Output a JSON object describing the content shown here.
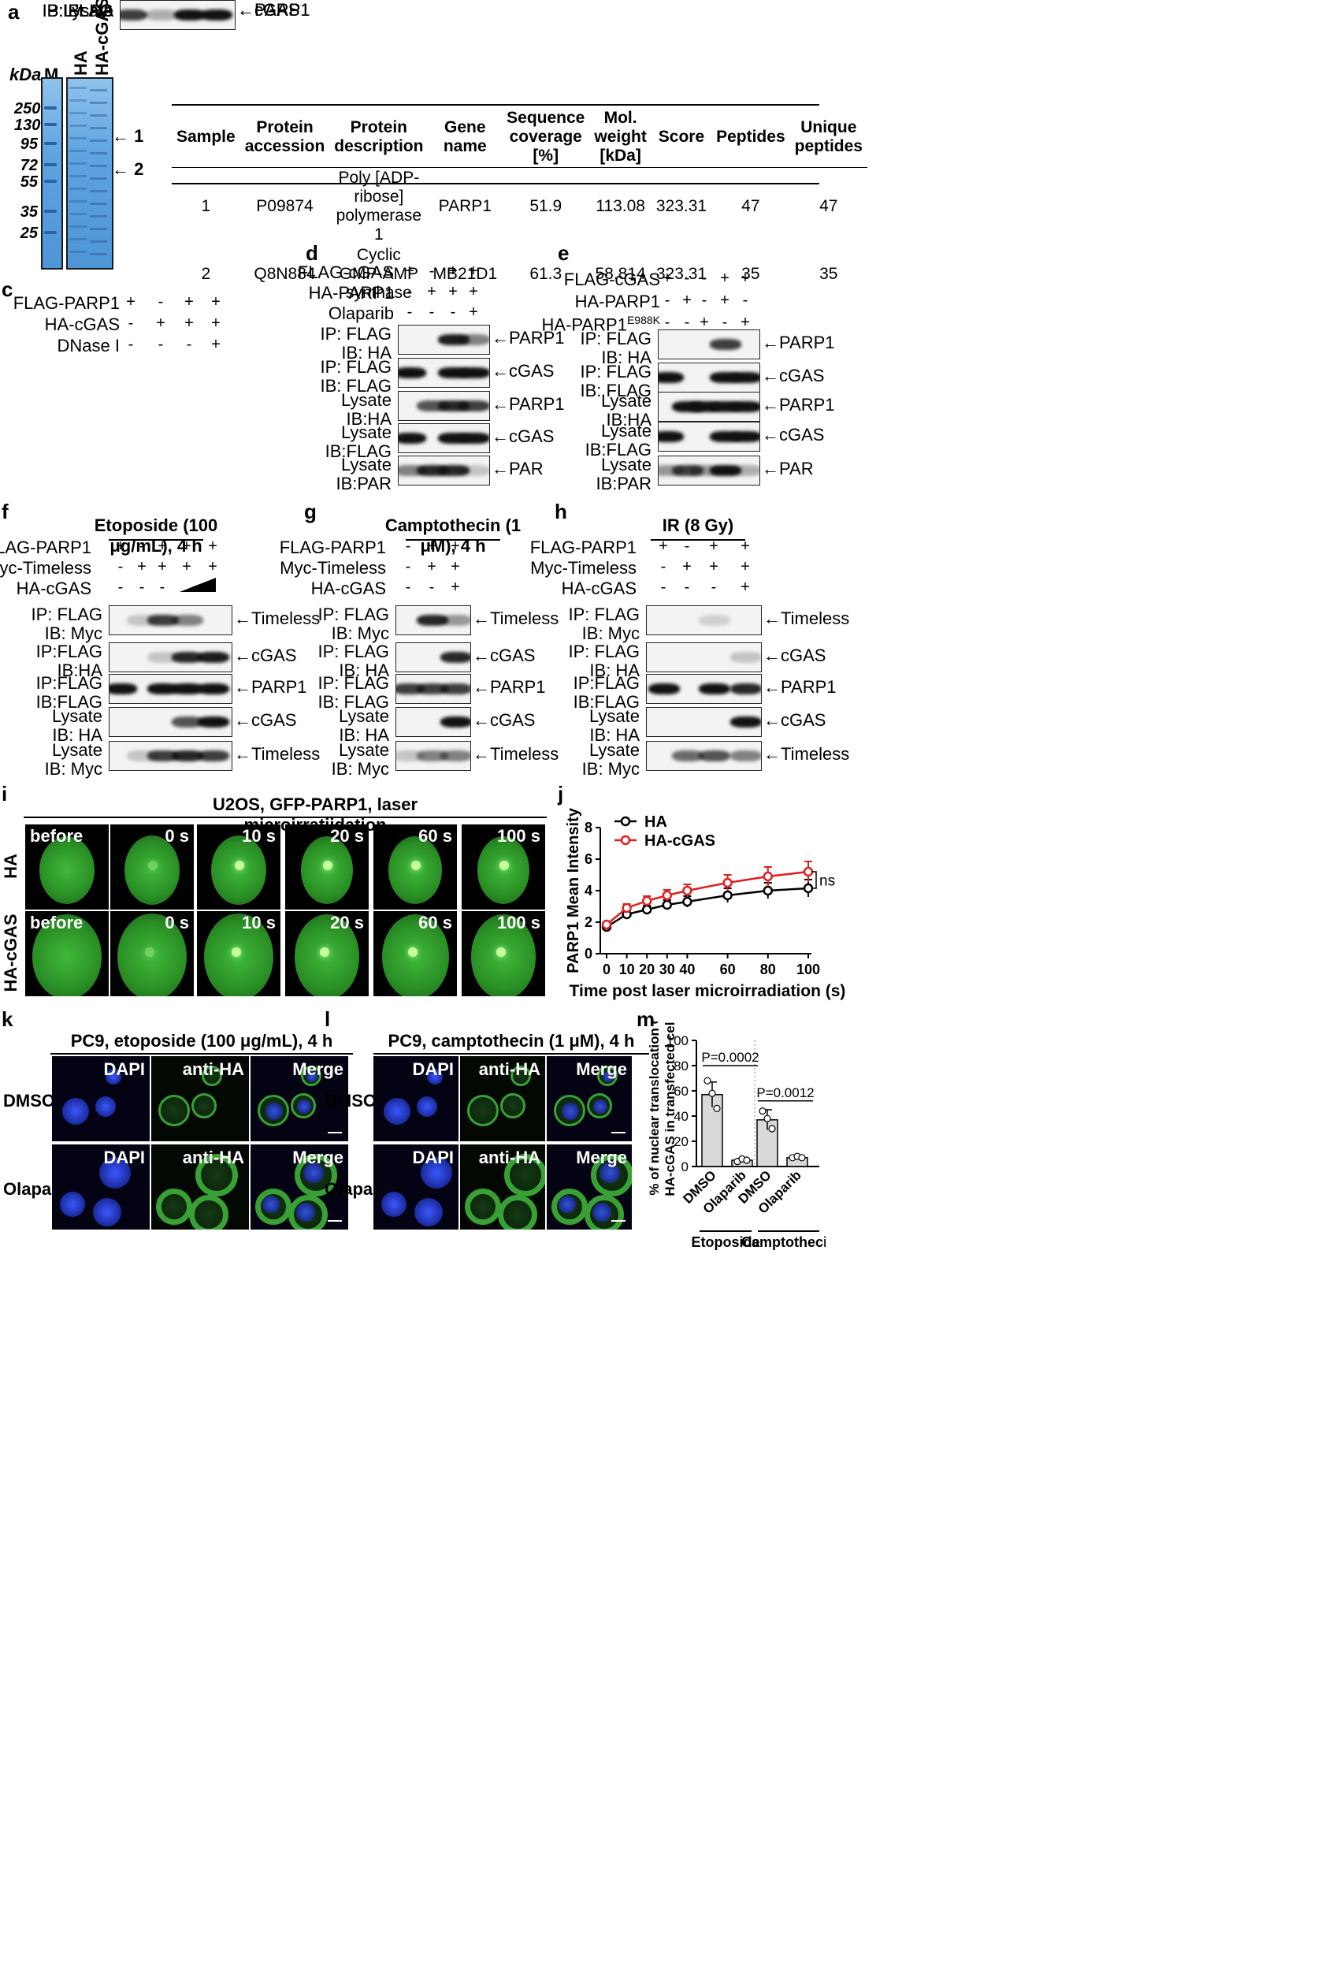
{
  "panels": {
    "a": "a",
    "b": "b",
    "c": "c",
    "d": "d",
    "e": "e",
    "f": "f",
    "g": "g",
    "h": "h",
    "i": "i",
    "j": "j",
    "k": "k",
    "l": "l",
    "m": "m"
  },
  "panel_a": {
    "kda_label": "kDa",
    "lanes": [
      "M",
      "HA",
      "HA-cGAS"
    ],
    "markers": [
      "250",
      "130",
      "95",
      "72",
      "55",
      "35",
      "25"
    ],
    "bands": [
      "1",
      "2"
    ]
  },
  "panel_b": {
    "headers": [
      "Sample",
      "Protein accession",
      "Protein description",
      "Gene name",
      "Sequence coverage [%]",
      "Mol. weight [kDa]",
      "Score",
      "Peptides",
      "Unique peptides"
    ],
    "rows": [
      [
        "1",
        "P09874",
        "Poly [ADP-ribose] polymerase 1",
        "PARP1",
        "51.9",
        "113.08",
        "323.31",
        "47",
        "47"
      ],
      [
        "2",
        "Q8N884",
        "Cyclic GMP-AMP synthase",
        "MB21D1",
        "61.3",
        "58.814",
        "323.31",
        "35",
        "35"
      ]
    ]
  },
  "panel_c": {
    "conditions": [
      {
        "name": "FLAG-PARP1",
        "signs": [
          "+",
          "-",
          "+",
          "+"
        ]
      },
      {
        "name": "HA-cGAS",
        "signs": [
          "-",
          "+",
          "+",
          "+"
        ]
      },
      {
        "name": "DNase I",
        "signs": [
          "-",
          "-",
          "-",
          "+"
        ]
      }
    ],
    "blots": [
      {
        "l1": "IP: FLAG",
        "l2": "IB: HA",
        "target": "cGAS"
      },
      {
        "l1": "IP: FLAG",
        "l2": "IB: FLAG",
        "target": "PARP1"
      },
      {
        "l1": "Lysate",
        "l2": "IB: HA",
        "target": "cGAS"
      },
      {
        "l1": "Lysate",
        "l2": "IB: FLAG",
        "target": "PARP1"
      }
    ]
  },
  "panel_d": {
    "conditions": [
      {
        "name": "FLAG-cGAS",
        "signs": [
          "+",
          "-",
          "+",
          "+"
        ]
      },
      {
        "name": "HA-PARP1",
        "signs": [
          "-",
          "+",
          "+",
          "+"
        ]
      },
      {
        "name": "Olaparib",
        "signs": [
          "-",
          "-",
          "-",
          "+"
        ]
      }
    ],
    "blots": [
      {
        "l1": "IP: FLAG",
        "l2": "IB: HA",
        "target": "PARP1"
      },
      {
        "l1": "IP: FLAG",
        "l2": "IB: FLAG",
        "target": "cGAS"
      },
      {
        "l1": "Lysate",
        "l2": "IB:HA",
        "target": "PARP1"
      },
      {
        "l1": "Lysate",
        "l2": "IB:FLAG",
        "target": "cGAS"
      },
      {
        "l1": "Lysate",
        "l2": "IB:PAR",
        "target": "PAR"
      }
    ]
  },
  "panel_e": {
    "conditions": [
      {
        "name": "FLAG-cGAS",
        "signs": [
          "+",
          "-",
          "-",
          "+",
          "+"
        ]
      },
      {
        "name": "HA-PARP1",
        "signs": [
          "-",
          "+",
          "-",
          "+",
          "-"
        ]
      },
      {
        "name": "HA-PARP1",
        "sup": "E988K",
        "signs": [
          "-",
          "-",
          "+",
          "-",
          "+"
        ]
      }
    ],
    "blots": [
      {
        "l1": "IP: FLAG",
        "l2": "IB: HA",
        "target": "PARP1"
      },
      {
        "l1": "IP: FLAG",
        "l2": "IB: FLAG",
        "target": "cGAS"
      },
      {
        "l1": "Lysate",
        "l2": "IB:HA",
        "target": "PARP1"
      },
      {
        "l1": "Lysate",
        "l2": "IB:FLAG",
        "target": "cGAS"
      },
      {
        "l1": "Lysate",
        "l2": "IB:PAR",
        "target": "PAR"
      }
    ]
  },
  "panel_f": {
    "title": "Etoposide (100 μg/mL), 4 h",
    "conditions": [
      {
        "name": "FLAG-PARP1",
        "signs": [
          "+",
          "-",
          "+",
          "+",
          "+"
        ]
      },
      {
        "name": "Myc-Timeless",
        "signs": [
          "-",
          "+",
          "+",
          "+",
          "+"
        ]
      },
      {
        "name": "HA-cGAS",
        "signs": [
          "-",
          "-",
          "-",
          "",
          ""
        ]
      }
    ],
    "blots": [
      {
        "l1": "IP: FLAG",
        "l2": "IB: Myc",
        "target": "Timeless"
      },
      {
        "l1": "IP:FLAG",
        "l2": "IB:HA",
        "target": "cGAS"
      },
      {
        "l1": "IP:FLAG",
        "l2": "IB:FLAG",
        "target": "PARP1"
      },
      {
        "l1": "Lysate",
        "l2": "IB: HA",
        "target": "cGAS"
      },
      {
        "l1": "Lysate",
        "l2": "IB: Myc",
        "target": "Timeless"
      }
    ]
  },
  "panel_g": {
    "title": "Camptothecin (1 μM), 4 h",
    "conditions": [
      {
        "name": "FLAG-PARP1",
        "signs": [
          "-",
          "+",
          "+"
        ]
      },
      {
        "name": "Myc-Timeless",
        "signs": [
          "-",
          "+",
          "+"
        ]
      },
      {
        "name": "HA-cGAS",
        "signs": [
          "-",
          "-",
          "+"
        ]
      }
    ],
    "blots": [
      {
        "l1": "IP: FLAG",
        "l2": "IB: Myc",
        "target": "Timeless"
      },
      {
        "l1": "IP: FLAG",
        "l2": "IB: HA",
        "target": "cGAS"
      },
      {
        "l1": "IP: FLAG",
        "l2": "IB: FLAG",
        "target": "PARP1"
      },
      {
        "l1": "Lysate",
        "l2": "IB: HA",
        "target": "cGAS"
      },
      {
        "l1": "Lysate",
        "l2": "IB: Myc",
        "target": "Timeless"
      }
    ]
  },
  "panel_h": {
    "title": "IR (8 Gy)",
    "conditions": [
      {
        "name": "FLAG-PARP1",
        "signs": [
          "+",
          "-",
          "+",
          "+"
        ]
      },
      {
        "name": "Myc-Timeless",
        "signs": [
          "-",
          "+",
          "+",
          "+"
        ]
      },
      {
        "name": "HA-cGAS",
        "signs": [
          "-",
          "-",
          "-",
          "+"
        ]
      }
    ],
    "blots": [
      {
        "l1": "IP: FLAG",
        "l2": "IB: Myc",
        "target": "Timeless"
      },
      {
        "l1": "IP: FLAG",
        "l2": "IB: HA",
        "target": "cGAS"
      },
      {
        "l1": "IP:FLAG",
        "l2": "IB:FLAG",
        "target": "PARP1"
      },
      {
        "l1": "Lysate",
        "l2": "IB: HA",
        "target": "cGAS"
      },
      {
        "l1": "Lysate",
        "l2": "IB: Myc",
        "target": "Timeless"
      }
    ]
  },
  "panel_i": {
    "title": "U2OS, GFP-PARP1, laser microirratiidation",
    "rows": [
      "HA",
      "HA-cGAS"
    ],
    "timepoints": [
      "before",
      "0 s",
      "10 s",
      "20 s",
      "60 s",
      "100 s"
    ]
  },
  "panel_k": {
    "title": "PC9, etoposide (100 μg/mL), 4 h",
    "rows": [
      "DMSO",
      "Olaparib"
    ],
    "channels": [
      "DAPI",
      "anti-HA",
      "Merge"
    ]
  },
  "panel_l": {
    "title": "PC9, camptothecin (1 μM), 4 h",
    "rows": [
      "DMSO",
      "Olaparib"
    ],
    "channels": [
      "DAPI",
      "anti-HA",
      "Merge"
    ]
  },
  "chart_data": [
    {
      "type": "line",
      "panel": "j",
      "xlabel": "Time post laser microirradiation (s)",
      "ylabel": "PARP1 Mean Intensity",
      "x": [
        0,
        10,
        20,
        30,
        40,
        60,
        80,
        100
      ],
      "xticks": [
        "0",
        "10",
        "20",
        "30",
        "40",
        "60",
        "80",
        "100"
      ],
      "yticks": [
        "0",
        "2",
        "4",
        "6",
        "8"
      ],
      "ylim": [
        0,
        8
      ],
      "series": [
        {
          "name": "HA",
          "color": "#000000",
          "values": [
            1.7,
            2.5,
            2.8,
            3.1,
            3.3,
            3.7,
            4.0,
            4.15
          ],
          "err": [
            0.15,
            0.2,
            0.25,
            0.3,
            0.35,
            0.45,
            0.5,
            0.55
          ]
        },
        {
          "name": "HA-cGAS",
          "color": "#e02020",
          "values": [
            1.85,
            2.9,
            3.35,
            3.7,
            4.0,
            4.5,
            4.9,
            5.2
          ],
          "err": [
            0.15,
            0.25,
            0.3,
            0.35,
            0.4,
            0.5,
            0.6,
            0.65
          ]
        }
      ],
      "annotation": "ns"
    },
    {
      "type": "bar",
      "panel": "m",
      "ylabel": "% of nuclear translocation of HA-cGAS in transfected cells",
      "categories": [
        "DMSO",
        "Olaparib",
        "DMSO",
        "Olaparib"
      ],
      "groups": [
        "Etoposide",
        "Camptothecin"
      ],
      "values": [
        57,
        5,
        37,
        7
      ],
      "err": [
        10,
        1.5,
        8,
        1
      ],
      "points": [
        [
          68,
          58,
          46
        ],
        [
          4,
          6,
          5
        ],
        [
          44,
          38,
          30
        ],
        [
          7,
          8,
          7
        ]
      ],
      "yticks": [
        "0",
        "20",
        "40",
        "60",
        "80",
        "100"
      ],
      "ylim": [
        0,
        100
      ],
      "pvalues": [
        "P=0.0002",
        "P=0.0012"
      ]
    }
  ]
}
